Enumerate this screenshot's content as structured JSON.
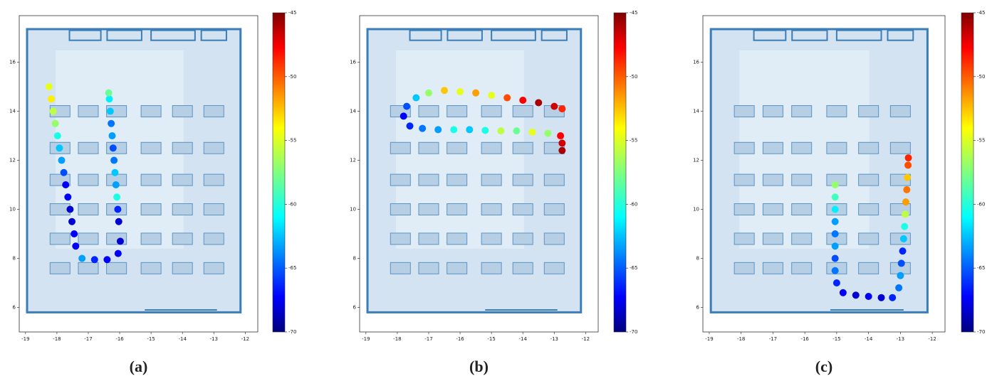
{
  "chart_data": [
    {
      "type": "scatter",
      "label": "(a)",
      "colormap": "jet",
      "xlim": [
        -19.2,
        -11.6
      ],
      "ylim": [
        5,
        17.9
      ],
      "xticks": [
        -19,
        -18,
        -17,
        -16,
        -15,
        -14,
        -13,
        -12
      ],
      "yticks": [
        6,
        8,
        10,
        12,
        14,
        16
      ],
      "clim": [
        -70,
        -45
      ],
      "cticks": [
        -70,
        -65,
        -60,
        -55,
        -50,
        -45
      ],
      "x": [
        -18.25,
        -18.18,
        -18.12,
        -18.05,
        -17.98,
        -17.92,
        -17.85,
        -17.78,
        -17.72,
        -17.65,
        -17.58,
        -17.52,
        -17.45,
        -17.4,
        -17.2,
        -16.8,
        -16.4,
        -16.05,
        -15.98,
        -16.03,
        -16.06,
        -16.09,
        -16.12,
        -16.15,
        -16.18,
        -16.21,
        -16.24,
        -16.27,
        -16.3,
        -16.33,
        -16.35
      ],
      "y": [
        15,
        14.5,
        14,
        13.5,
        13,
        12.5,
        12,
        11.5,
        11,
        10.5,
        10,
        9.5,
        9,
        8.5,
        8.0,
        7.95,
        7.95,
        8.2,
        8.7,
        9.5,
        10,
        10.5,
        11,
        11.5,
        12,
        12.5,
        13,
        13.5,
        14,
        14.5,
        14.75
      ],
      "values": [
        -55,
        -54,
        -56,
        -57,
        -60,
        -62,
        -63,
        -65,
        -67,
        -67,
        -68,
        -68,
        -67,
        -67,
        -63,
        -66,
        -67,
        -67,
        -68,
        -68,
        -66,
        -60,
        -63,
        -62,
        -64,
        -65,
        -63,
        -64,
        -62,
        -61,
        -58
      ]
    },
    {
      "type": "scatter",
      "label": "(b)",
      "colormap": "jet",
      "xlim": [
        -19.2,
        -11.6
      ],
      "ylim": [
        5,
        17.9
      ],
      "xticks": [
        -19,
        -18,
        -17,
        -16,
        -15,
        -14,
        -13,
        -12
      ],
      "yticks": [
        6,
        8,
        10,
        12,
        14,
        16
      ],
      "clim": [
        -70,
        -45
      ],
      "cticks": [
        -70,
        -65,
        -60,
        -55,
        -50,
        -45
      ],
      "x": [
        -12.75,
        -12.75,
        -12.8,
        -13.2,
        -13.7,
        -14.2,
        -14.7,
        -15.2,
        -15.7,
        -16.2,
        -16.7,
        -17.2,
        -17.6,
        -17.8,
        -17.7,
        -17.4,
        -17.0,
        -16.5,
        -16.0,
        -15.5,
        -15.0,
        -14.5,
        -14.0,
        -13.5,
        -13.0,
        -12.75
      ],
      "y": [
        12.4,
        12.7,
        13.0,
        13.1,
        13.15,
        13.2,
        13.2,
        13.22,
        13.25,
        13.25,
        13.25,
        13.3,
        13.4,
        13.8,
        14.2,
        14.55,
        14.75,
        14.85,
        14.8,
        14.75,
        14.65,
        14.55,
        14.45,
        14.35,
        14.2,
        14.1
      ],
      "values": [
        -46,
        -47,
        -48,
        -57,
        -55,
        -58,
        -56,
        -60,
        -62,
        -60,
        -63,
        -64,
        -66,
        -67,
        -65,
        -62,
        -57,
        -53,
        -55,
        -52,
        -55,
        -50,
        -48,
        -46,
        -47,
        -49
      ]
    },
    {
      "type": "scatter",
      "label": "(c)",
      "colormap": "jet",
      "xlim": [
        -19.2,
        -11.6
      ],
      "ylim": [
        5,
        17.9
      ],
      "xticks": [
        -19,
        -18,
        -17,
        -16,
        -15,
        -14,
        -13,
        -12
      ],
      "yticks": [
        6,
        8,
        10,
        12,
        14,
        16
      ],
      "clim": [
        -70,
        -45
      ],
      "cticks": [
        -70,
        -65,
        -60,
        -55,
        -50,
        -45
      ],
      "x": [
        -15.05,
        -15.05,
        -15.05,
        -15.05,
        -15.05,
        -15.05,
        -15.05,
        -15.05,
        -15.0,
        -14.8,
        -14.4,
        -14.0,
        -13.6,
        -13.25,
        -13.05,
        -13.0,
        -12.97,
        -12.93,
        -12.9,
        -12.87,
        -12.85,
        -12.83,
        -12.8,
        -12.78,
        -12.76,
        -12.75
      ],
      "y": [
        11,
        10.5,
        10,
        9.5,
        9,
        8.5,
        8,
        7.5,
        7.0,
        6.6,
        6.5,
        6.45,
        6.4,
        6.4,
        6.8,
        7.3,
        7.8,
        8.3,
        8.8,
        9.3,
        9.8,
        10.3,
        10.8,
        11.3,
        11.8,
        12.1
      ],
      "values": [
        -57,
        -59,
        -61,
        -63,
        -64,
        -63,
        -65,
        -64,
        -66,
        -67,
        -68,
        -67,
        -68,
        -66,
        -64,
        -63,
        -65,
        -66,
        -62,
        -60,
        -56,
        -52,
        -51,
        -53,
        -50,
        -49
      ]
    }
  ]
}
